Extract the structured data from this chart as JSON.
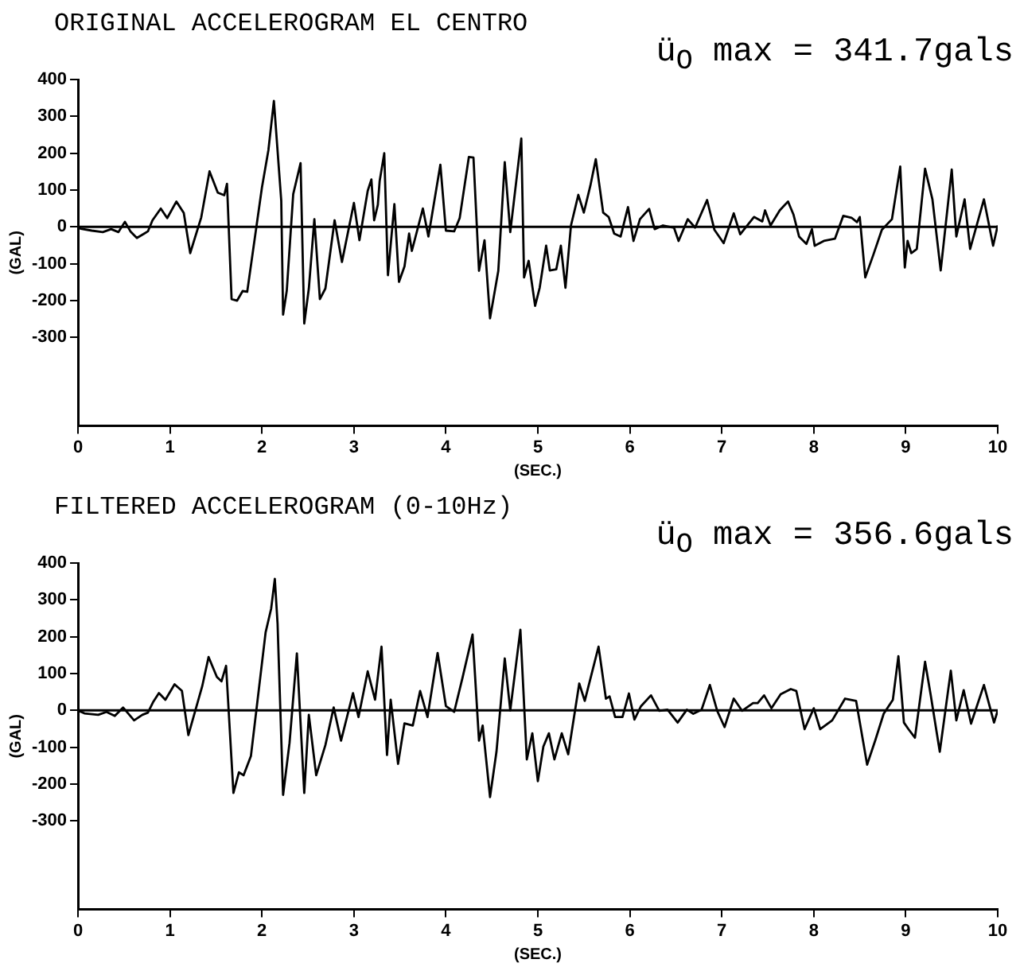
{
  "chart_data": [
    {
      "type": "line",
      "title": "ORIGINAL ACCELEROGRAM EL CENTRO",
      "xlabel": "(SEC.)",
      "ylabel": "(GAL)",
      "annotations": [
        "ü$_{O}$ max = 341.7gals"
      ],
      "xlim": [
        0,
        10
      ],
      "xticks": [
        0,
        1,
        2,
        3,
        4,
        5,
        6,
        7,
        8,
        9,
        10
      ],
      "ylim": [
        -540,
        400
      ],
      "yticks": [
        400,
        300,
        200,
        100,
        0,
        -100,
        -200,
        -300
      ],
      "grid": false,
      "legend": false,
      "marker": "none",
      "line_style": "solid",
      "ref_lines": [
        {
          "axis": "y",
          "value": 0
        }
      ],
      "series": [
        {
          "color": "#000000",
          "x": [
            0,
            0.03,
            0.15,
            0.27,
            0.36,
            0.44,
            0.51,
            0.57,
            0.64,
            0.72,
            0.76,
            0.81,
            0.9,
            0.97,
            1.07,
            1.15,
            1.22,
            1.34,
            1.43,
            1.52,
            1.59,
            1.62,
            1.67,
            1.73,
            1.79,
            1.84,
            2.0,
            2.07,
            2.13,
            2.21,
            2.23,
            2.27,
            2.34,
            2.42,
            2.46,
            2.51,
            2.57,
            2.63,
            2.69,
            2.79,
            2.87,
            3.0,
            3.06,
            3.15,
            3.19,
            3.22,
            3.26,
            3.28,
            3.33,
            3.37,
            3.44,
            3.49,
            3.55,
            3.6,
            3.63,
            3.75,
            3.81,
            3.94,
            4.0,
            4.09,
            4.15,
            4.25,
            4.3,
            4.36,
            4.42,
            4.48,
            4.57,
            4.64,
            4.7,
            4.82,
            4.85,
            4.9,
            4.97,
            5.02,
            5.09,
            5.13,
            5.2,
            5.25,
            5.3,
            5.36,
            5.44,
            5.5,
            5.57,
            5.63,
            5.71,
            5.77,
            5.83,
            5.9,
            5.98,
            6.04,
            6.11,
            6.21,
            6.27,
            6.36,
            6.48,
            6.53,
            6.63,
            6.71,
            6.84,
            6.92,
            7.02,
            7.13,
            7.2,
            7.35,
            7.44,
            7.47,
            7.53,
            7.63,
            7.72,
            7.78,
            7.84,
            7.92,
            7.98,
            8.01,
            8.11,
            8.23,
            8.32,
            8.41,
            8.47,
            8.5,
            8.56,
            8.65,
            8.74,
            8.85,
            8.94,
            8.99,
            9.02,
            9.06,
            9.12,
            9.21,
            9.29,
            9.38,
            9.5,
            9.55,
            9.64,
            9.7,
            9.85,
            9.95,
            10.0
          ],
          "values": [
            0,
            -5,
            -10,
            -14,
            -6,
            -14,
            14,
            -12,
            -30,
            -18,
            -12,
            18,
            50,
            24,
            69,
            38,
            -71,
            26,
            151,
            93,
            86,
            117,
            -196,
            -200,
            -174,
            -176,
            107,
            208,
            342,
            71,
            -238,
            -173,
            89,
            173,
            -262,
            -167,
            21,
            -196,
            -167,
            18,
            -95,
            65,
            -36,
            98,
            129,
            18,
            60,
            125,
            200,
            -131,
            62,
            -149,
            -107,
            -18,
            -65,
            50,
            -26,
            169,
            -10,
            -12,
            24,
            190,
            188,
            -119,
            -36,
            -248,
            -119,
            176,
            -14,
            240,
            -137,
            -92,
            -214,
            -165,
            -51,
            -118,
            -115,
            -51,
            -165,
            4,
            87,
            39,
            111,
            184,
            39,
            27,
            -18,
            -26,
            54,
            -38,
            21,
            49,
            -6,
            4,
            -2,
            -38,
            21,
            -2,
            73,
            -8,
            -44,
            37,
            -20,
            27,
            15,
            45,
            4,
            45,
            69,
            33,
            -26,
            -46,
            -6,
            -51,
            -38,
            -32,
            30,
            25,
            13,
            27,
            -137,
            -74,
            -8,
            21,
            164,
            -110,
            -38,
            -71,
            -60,
            158,
            75,
            -118,
            156,
            -26,
            75,
            -60,
            75,
            -51,
            4
          ]
        }
      ]
    },
    {
      "type": "line",
      "title": "FILTERED ACCELEROGRAM (0-10Hz)",
      "xlabel": "(SEC.)",
      "ylabel": "(GAL)",
      "annotations": [
        "ü$_{O}$ max = 356.6gals"
      ],
      "xlim": [
        0,
        10
      ],
      "xticks": [
        0,
        1,
        2,
        3,
        4,
        5,
        6,
        7,
        8,
        9,
        10
      ],
      "ylim": [
        -540,
        400
      ],
      "yticks": [
        400,
        300,
        200,
        100,
        0,
        -100,
        -200,
        -300
      ],
      "grid": false,
      "legend": false,
      "marker": "none",
      "line_style": "solid",
      "ref_lines": [
        {
          "axis": "y",
          "value": 0
        }
      ],
      "series": [
        {
          "color": "#000000",
          "x": [
            0,
            0.07,
            0.22,
            0.31,
            0.4,
            0.49,
            0.61,
            0.7,
            0.76,
            0.82,
            0.88,
            0.95,
            1.05,
            1.13,
            1.2,
            1.35,
            1.42,
            1.51,
            1.56,
            1.61,
            1.69,
            1.75,
            1.8,
            1.88,
            2.04,
            2.1,
            2.14,
            2.17,
            2.23,
            2.3,
            2.38,
            2.46,
            2.51,
            2.59,
            2.69,
            2.78,
            2.86,
            2.99,
            3.05,
            3.15,
            3.23,
            3.3,
            3.36,
            3.4,
            3.48,
            3.55,
            3.64,
            3.72,
            3.8,
            3.91,
            4.0,
            4.09,
            4.18,
            4.29,
            4.36,
            4.4,
            4.48,
            4.55,
            4.64,
            4.7,
            4.81,
            4.88,
            4.94,
            5.0,
            5.06,
            5.12,
            5.18,
            5.26,
            5.33,
            5.45,
            5.51,
            5.66,
            5.74,
            5.78,
            5.84,
            5.92,
            5.99,
            6.05,
            6.12,
            6.23,
            6.32,
            6.41,
            6.52,
            6.62,
            6.69,
            6.78,
            6.87,
            6.95,
            7.03,
            7.13,
            7.22,
            7.34,
            7.39,
            7.46,
            7.54,
            7.64,
            7.75,
            7.81,
            7.9,
            8.0,
            8.07,
            8.2,
            8.34,
            8.46,
            8.58,
            8.67,
            8.76,
            8.86,
            8.92,
            8.98,
            9.03,
            9.1,
            9.21,
            9.27,
            9.37,
            9.49,
            9.55,
            9.63,
            9.71,
            9.85,
            9.96,
            10
          ],
          "values": [
            0,
            -8,
            -12,
            -4,
            -15,
            8,
            -27,
            -12,
            -6,
            24,
            47,
            29,
            71,
            53,
            -67,
            65,
            145,
            91,
            79,
            121,
            -224,
            -168,
            -176,
            -124,
            212,
            276,
            357,
            235,
            -229,
            -88,
            155,
            -224,
            -12,
            -176,
            -94,
            8,
            -82,
            47,
            -18,
            106,
            29,
            173,
            -121,
            29,
            -145,
            -35,
            -41,
            53,
            -18,
            156,
            12,
            -4,
            88,
            206,
            -82,
            -41,
            -235,
            -112,
            141,
            0,
            219,
            -133,
            -62,
            -192,
            -98,
            -62,
            -133,
            -62,
            -119,
            73,
            26,
            173,
            32,
            38,
            -18,
            -18,
            46,
            -25,
            11,
            41,
            -1,
            2,
            -33,
            2,
            -9,
            2,
            69,
            -1,
            -45,
            32,
            -1,
            20,
            20,
            41,
            6,
            44,
            58,
            53,
            -51,
            6,
            -51,
            -27,
            32,
            26,
            -147,
            -80,
            -9,
            29,
            147,
            -33,
            -51,
            -74,
            132,
            44,
            -112,
            108,
            -27,
            55,
            -36,
            69,
            -33,
            0
          ]
        }
      ]
    }
  ]
}
